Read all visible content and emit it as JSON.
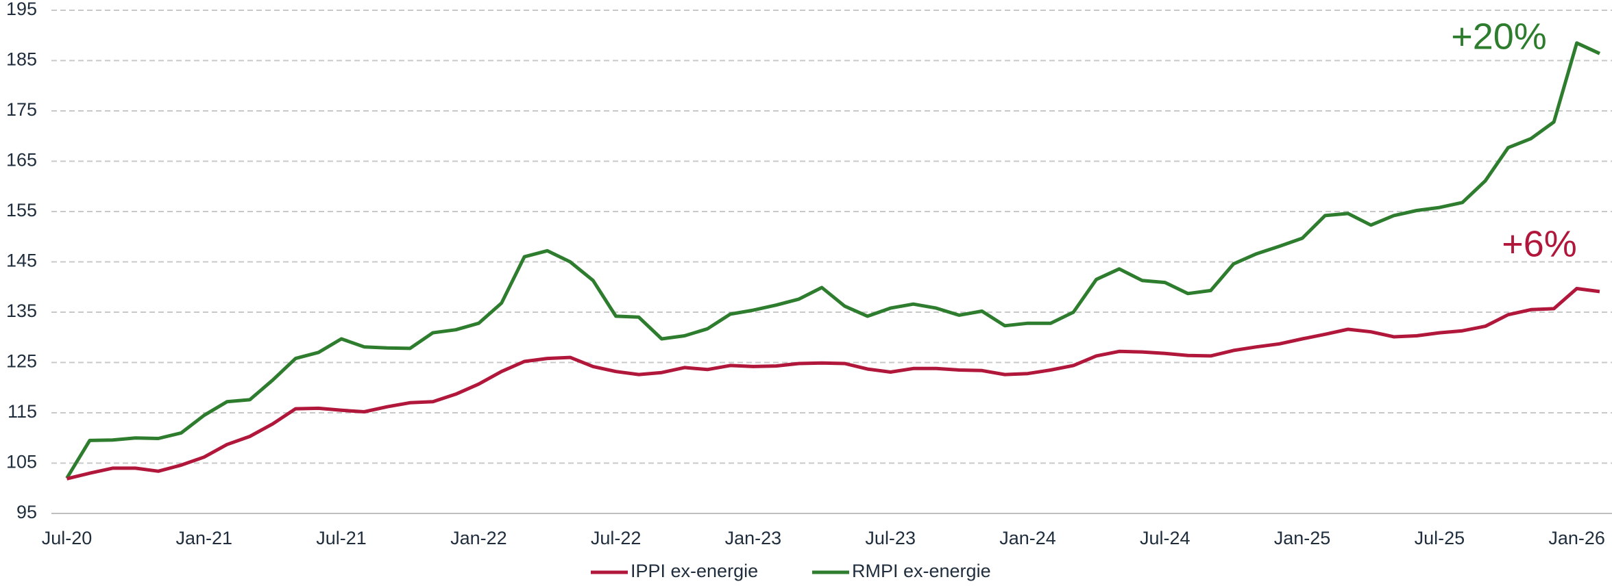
{
  "chart_data": {
    "type": "line",
    "categories": [
      "Jul-20",
      null,
      null,
      null,
      null,
      null,
      "Jan-21",
      null,
      null,
      null,
      null,
      null,
      "Jul-21",
      null,
      null,
      null,
      null,
      null,
      "Jan-22",
      null,
      null,
      null,
      null,
      null,
      "Jul-22",
      null,
      null,
      null,
      null,
      null,
      "Jan-23",
      null,
      null,
      null,
      null,
      null,
      "Jul-23",
      null,
      null,
      null,
      null,
      null,
      "Jan-24",
      null,
      null,
      null,
      null,
      null,
      "Jul-24",
      null,
      null,
      null,
      null,
      null,
      "Jan-25",
      null,
      null,
      null,
      null,
      null,
      "Jul-25",
      null,
      null,
      null,
      null,
      null,
      "Jan-26",
      null
    ],
    "series": [
      {
        "name": "IPPI ex-energie",
        "color": "#b0173a",
        "values": [
          101.9,
          103,
          104,
          104,
          103.4,
          104.6,
          106.2,
          108.7,
          110.3,
          112.8,
          115.8,
          115.9,
          115.5,
          115.2,
          116.2,
          117,
          117.2,
          118.7,
          120.7,
          123.2,
          125.2,
          125.8,
          126,
          124.2,
          123.2,
          122.6,
          123,
          124,
          123.6,
          124.4,
          124.2,
          124.3,
          124.8,
          124.9,
          124.8,
          123.7,
          123.1,
          123.8,
          123.8,
          123.5,
          123.4,
          122.6,
          122.8,
          123.5,
          124.4,
          126.3,
          127.2,
          127.1,
          126.8,
          126.4,
          126.3,
          127.4,
          128.1,
          128.7,
          129.7,
          130.6,
          131.6,
          131.1,
          130.1,
          130.3,
          130.9,
          131.3,
          132.2,
          134.5,
          135.5,
          135.7,
          139.7,
          139.1
        ]
      },
      {
        "name": "RMPI ex-energie",
        "color": "#2e7d2e",
        "values": [
          102,
          109.5,
          109.6,
          110,
          109.9,
          111,
          114.5,
          117.2,
          117.6,
          121.5,
          125.8,
          127,
          129.7,
          128.1,
          127.9,
          127.8,
          130.9,
          131.5,
          132.8,
          136.8,
          146,
          147.2,
          145,
          141.3,
          134.2,
          134,
          129.7,
          130.3,
          131.7,
          134.6,
          135.4,
          136.4,
          137.6,
          139.9,
          136.2,
          134.2,
          135.8,
          136.6,
          135.8,
          134.4,
          135.2,
          132.3,
          132.8,
          132.8,
          135,
          141.5,
          143.6,
          141.3,
          140.9,
          138.7,
          139.3,
          144.6,
          146.6,
          148.1,
          149.7,
          154.2,
          154.6,
          152.3,
          154.2,
          155.2,
          155.8,
          156.8,
          161.1,
          167.7,
          169.5,
          172.8,
          188.5,
          186.4
        ]
      }
    ],
    "annotations": [
      {
        "text": "+20%",
        "color": "#2e7d2e"
      },
      {
        "text": "+6%",
        "color": "#b0173a"
      }
    ],
    "ylim": [
      95,
      195
    ],
    "yticks": [
      95,
      105,
      115,
      125,
      135,
      145,
      155,
      165,
      175,
      185,
      195
    ],
    "grid": true
  }
}
